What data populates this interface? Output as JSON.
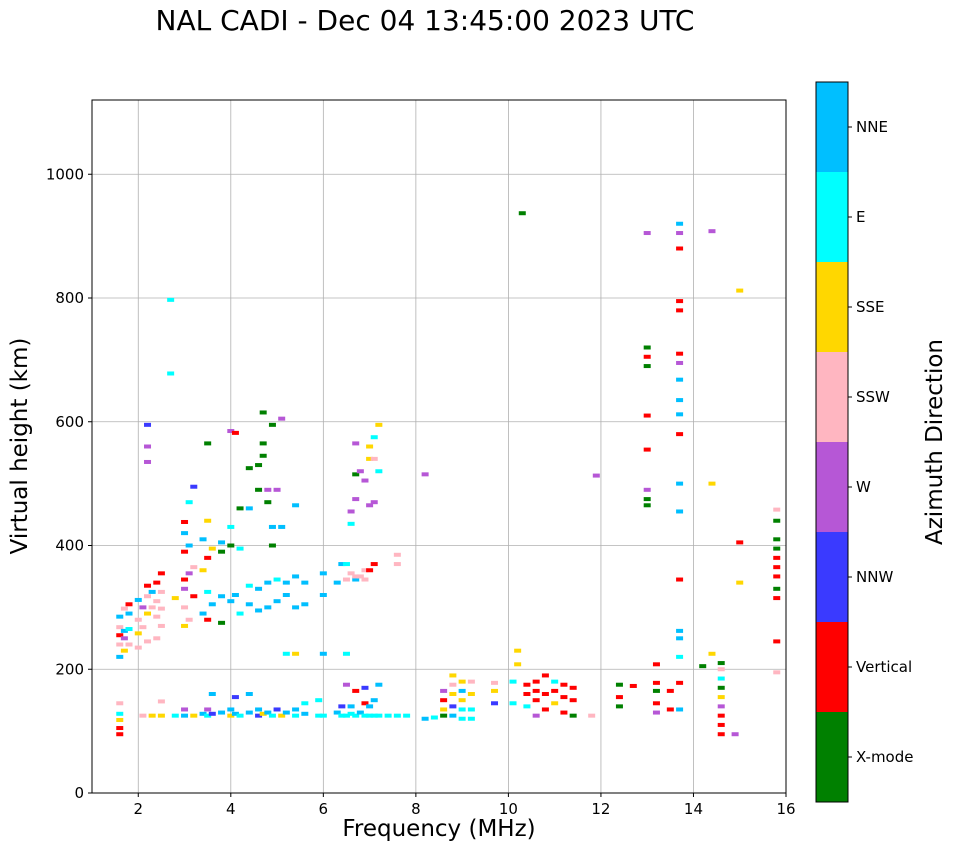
{
  "chart_data": {
    "type": "scatter",
    "title": "NAL CADI - Dec 04 13:45:00 2023 UTC",
    "xlabel": "Frequency (MHz)",
    "ylabel": "Virtual height (km)",
    "xlim": [
      1,
      16
    ],
    "ylim": [
      0,
      1120
    ],
    "xticks": [
      2,
      4,
      6,
      8,
      10,
      12,
      14,
      16
    ],
    "yticks": [
      0,
      200,
      400,
      600,
      800,
      1000
    ],
    "grid": true,
    "colorbar": {
      "label": "Azimuth Direction",
      "categories": [
        {
          "name": "X-mode",
          "color": "#008000"
        },
        {
          "name": "Vertical",
          "color": "#ff0000"
        },
        {
          "name": "NNW",
          "color": "#3a3aff"
        },
        {
          "name": "W",
          "color": "#b657d6"
        },
        {
          "name": "SSW",
          "color": "#ffb6c1"
        },
        {
          "name": "SSE",
          "color": "#ffd700"
        },
        {
          "name": "E",
          "color": "#00ffff"
        },
        {
          "name": "NNE",
          "color": "#00bfff"
        }
      ]
    },
    "points": [
      [
        1.6,
        95,
        "Vertical"
      ],
      [
        1.6,
        105,
        "Vertical"
      ],
      [
        1.6,
        118,
        "SSE"
      ],
      [
        1.6,
        128,
        "E"
      ],
      [
        1.6,
        145,
        "SSW"
      ],
      [
        1.6,
        220,
        "NNE"
      ],
      [
        1.6,
        240,
        "SSW"
      ],
      [
        1.6,
        255,
        "Vertical"
      ],
      [
        1.6,
        268,
        "SSW"
      ],
      [
        1.6,
        285,
        "NNE"
      ],
      [
        1.7,
        230,
        "SSE"
      ],
      [
        1.7,
        250,
        "W"
      ],
      [
        1.7,
        262,
        "NNE"
      ],
      [
        1.7,
        298,
        "SSW"
      ],
      [
        1.8,
        240,
        "SSW"
      ],
      [
        1.8,
        265,
        "E"
      ],
      [
        1.8,
        290,
        "NNE"
      ],
      [
        1.8,
        305,
        "Vertical"
      ],
      [
        2.0,
        235,
        "SSW"
      ],
      [
        2.0,
        258,
        "SSE"
      ],
      [
        2.0,
        280,
        "SSW"
      ],
      [
        2.0,
        312,
        "NNE"
      ],
      [
        2.1,
        125,
        "SSW"
      ],
      [
        2.1,
        268,
        "SSW"
      ],
      [
        2.1,
        300,
        "W"
      ],
      [
        2.2,
        245,
        "SSW"
      ],
      [
        2.2,
        290,
        "SSE"
      ],
      [
        2.2,
        318,
        "SSW"
      ],
      [
        2.2,
        335,
        "Vertical"
      ],
      [
        2.2,
        595,
        "NNW"
      ],
      [
        2.2,
        560,
        "W"
      ],
      [
        2.2,
        535,
        "W"
      ],
      [
        2.3,
        125,
        "SSE"
      ],
      [
        2.3,
        300,
        "SSW"
      ],
      [
        2.3,
        325,
        "NNE"
      ],
      [
        2.4,
        250,
        "SSW"
      ],
      [
        2.4,
        285,
        "SSW"
      ],
      [
        2.4,
        310,
        "SSW"
      ],
      [
        2.4,
        340,
        "Vertical"
      ],
      [
        2.5,
        125,
        "SSE"
      ],
      [
        2.5,
        148,
        "SSW"
      ],
      [
        2.5,
        270,
        "SSW"
      ],
      [
        2.5,
        298,
        "SSW"
      ],
      [
        2.5,
        325,
        "SSW"
      ],
      [
        2.5,
        355,
        "Vertical"
      ],
      [
        2.7,
        678,
        "E"
      ],
      [
        2.7,
        797,
        "E"
      ],
      [
        2.8,
        125,
        "E"
      ],
      [
        2.8,
        315,
        "SSE"
      ],
      [
        3.0,
        125,
        "NNE"
      ],
      [
        3.0,
        135,
        "W"
      ],
      [
        3.0,
        270,
        "SSE"
      ],
      [
        3.0,
        300,
        "SSW"
      ],
      [
        3.0,
        330,
        "W"
      ],
      [
        3.0,
        345,
        "Vertical"
      ],
      [
        3.0,
        390,
        "Vertical"
      ],
      [
        3.0,
        420,
        "NNE"
      ],
      [
        3.0,
        438,
        "Vertical"
      ],
      [
        3.1,
        280,
        "SSW"
      ],
      [
        3.1,
        355,
        "W"
      ],
      [
        3.1,
        400,
        "NNE"
      ],
      [
        3.1,
        470,
        "E"
      ],
      [
        3.2,
        125,
        "SSE"
      ],
      [
        3.2,
        318,
        "Vertical"
      ],
      [
        3.2,
        365,
        "SSW"
      ],
      [
        3.2,
        495,
        "NNW"
      ],
      [
        3.4,
        128,
        "NNE"
      ],
      [
        3.4,
        290,
        "NNE"
      ],
      [
        3.4,
        360,
        "SSE"
      ],
      [
        3.4,
        410,
        "NNE"
      ],
      [
        3.5,
        125,
        "E"
      ],
      [
        3.5,
        135,
        "W"
      ],
      [
        3.5,
        280,
        "Vertical"
      ],
      [
        3.5,
        325,
        "E"
      ],
      [
        3.5,
        380,
        "Vertical"
      ],
      [
        3.5,
        440,
        "SSE"
      ],
      [
        3.5,
        565,
        "X-mode"
      ],
      [
        3.6,
        128,
        "NNW"
      ],
      [
        3.6,
        160,
        "NNE"
      ],
      [
        3.6,
        305,
        "NNE"
      ],
      [
        3.6,
        395,
        "SSE"
      ],
      [
        3.8,
        130,
        "NNE"
      ],
      [
        3.8,
        275,
        "X-mode"
      ],
      [
        3.8,
        318,
        "NNE"
      ],
      [
        3.8,
        390,
        "X-mode"
      ],
      [
        3.8,
        405,
        "NNE"
      ],
      [
        4.0,
        125,
        "SSE"
      ],
      [
        4.0,
        135,
        "NNE"
      ],
      [
        4.0,
        310,
        "NNE"
      ],
      [
        4.0,
        400,
        "X-mode"
      ],
      [
        4.0,
        430,
        "E"
      ],
      [
        4.0,
        585,
        "W"
      ],
      [
        4.1,
        128,
        "NNE"
      ],
      [
        4.1,
        155,
        "NNW"
      ],
      [
        4.1,
        320,
        "NNE"
      ],
      [
        4.1,
        582,
        "Vertical"
      ],
      [
        4.2,
        125,
        "E"
      ],
      [
        4.2,
        290,
        "E"
      ],
      [
        4.2,
        395,
        "E"
      ],
      [
        4.2,
        460,
        "X-mode"
      ],
      [
        4.4,
        130,
        "NNE"
      ],
      [
        4.4,
        160,
        "NNE"
      ],
      [
        4.4,
        305,
        "NNE"
      ],
      [
        4.4,
        335,
        "E"
      ],
      [
        4.4,
        460,
        "NNE"
      ],
      [
        4.4,
        525,
        "X-mode"
      ],
      [
        4.6,
        125,
        "NNW"
      ],
      [
        4.6,
        135,
        "NNE"
      ],
      [
        4.6,
        295,
        "NNE"
      ],
      [
        4.6,
        330,
        "NNE"
      ],
      [
        4.6,
        490,
        "X-mode"
      ],
      [
        4.6,
        530,
        "X-mode"
      ],
      [
        4.7,
        128,
        "SSE"
      ],
      [
        4.7,
        615,
        "X-mode"
      ],
      [
        4.7,
        565,
        "X-mode"
      ],
      [
        4.7,
        545,
        "X-mode"
      ],
      [
        4.8,
        130,
        "NNE"
      ],
      [
        4.8,
        300,
        "NNE"
      ],
      [
        4.8,
        340,
        "NNE"
      ],
      [
        4.8,
        470,
        "X-mode"
      ],
      [
        4.8,
        490,
        "W"
      ],
      [
        4.9,
        125,
        "E"
      ],
      [
        4.9,
        400,
        "X-mode"
      ],
      [
        4.9,
        430,
        "NNE"
      ],
      [
        4.9,
        595,
        "X-mode"
      ],
      [
        5.0,
        135,
        "NNW"
      ],
      [
        5.0,
        310,
        "NNE"
      ],
      [
        5.0,
        345,
        "E"
      ],
      [
        5.0,
        490,
        "W"
      ],
      [
        5.1,
        125,
        "SSE"
      ],
      [
        5.1,
        430,
        "NNE"
      ],
      [
        5.1,
        605,
        "W"
      ],
      [
        5.2,
        130,
        "NNE"
      ],
      [
        5.2,
        320,
        "NNE"
      ],
      [
        5.2,
        340,
        "NNE"
      ],
      [
        5.2,
        225,
        "E"
      ],
      [
        5.4,
        125,
        "E"
      ],
      [
        5.4,
        135,
        "NNE"
      ],
      [
        5.4,
        300,
        "NNE"
      ],
      [
        5.4,
        350,
        "NNE"
      ],
      [
        5.4,
        465,
        "NNE"
      ],
      [
        5.4,
        225,
        "SSE"
      ],
      [
        5.6,
        128,
        "NNE"
      ],
      [
        5.6,
        145,
        "E"
      ],
      [
        5.6,
        305,
        "NNE"
      ],
      [
        5.6,
        340,
        "NNE"
      ],
      [
        5.9,
        125,
        "E"
      ],
      [
        5.9,
        150,
        "E"
      ],
      [
        6.0,
        125,
        "E"
      ],
      [
        6.0,
        320,
        "NNE"
      ],
      [
        6.0,
        355,
        "NNE"
      ],
      [
        6.0,
        225,
        "NNE"
      ],
      [
        6.3,
        130,
        "NNE"
      ],
      [
        6.3,
        340,
        "NNE"
      ],
      [
        6.4,
        125,
        "E"
      ],
      [
        6.4,
        140,
        "NNW"
      ],
      [
        6.4,
        370,
        "NNE"
      ],
      [
        6.5,
        125,
        "E"
      ],
      [
        6.5,
        175,
        "W"
      ],
      [
        6.5,
        225,
        "E"
      ],
      [
        6.5,
        345,
        "SSW"
      ],
      [
        6.5,
        370,
        "E"
      ],
      [
        6.6,
        128,
        "E"
      ],
      [
        6.6,
        140,
        "NNE"
      ],
      [
        6.6,
        355,
        "SSW"
      ],
      [
        6.6,
        435,
        "E"
      ],
      [
        6.6,
        455,
        "W"
      ],
      [
        6.7,
        125,
        "E"
      ],
      [
        6.7,
        165,
        "Vertical"
      ],
      [
        6.7,
        345,
        "NNE"
      ],
      [
        6.7,
        350,
        "SSW"
      ],
      [
        6.7,
        475,
        "W"
      ],
      [
        6.7,
        515,
        "X-mode"
      ],
      [
        6.7,
        565,
        "W"
      ],
      [
        6.8,
        130,
        "NNE"
      ],
      [
        6.8,
        350,
        "SSW"
      ],
      [
        6.8,
        520,
        "W"
      ],
      [
        6.9,
        125,
        "E"
      ],
      [
        6.9,
        145,
        "Vertical"
      ],
      [
        6.9,
        170,
        "NNW"
      ],
      [
        6.9,
        345,
        "SSW"
      ],
      [
        6.9,
        360,
        "SSW"
      ],
      [
        6.9,
        505,
        "W"
      ],
      [
        7.0,
        125,
        "E"
      ],
      [
        7.0,
        140,
        "NNE"
      ],
      [
        7.0,
        360,
        "Vertical"
      ],
      [
        7.0,
        465,
        "W"
      ],
      [
        7.0,
        540,
        "SSE"
      ],
      [
        7.0,
        560,
        "SSE"
      ],
      [
        7.1,
        125,
        "E"
      ],
      [
        7.1,
        150,
        "NNE"
      ],
      [
        7.1,
        370,
        "Vertical"
      ],
      [
        7.1,
        575,
        "E"
      ],
      [
        7.1,
        470,
        "W"
      ],
      [
        7.1,
        540,
        "SSW"
      ],
      [
        7.2,
        125,
        "E"
      ],
      [
        7.2,
        175,
        "NNE"
      ],
      [
        7.2,
        595,
        "SSE"
      ],
      [
        7.2,
        520,
        "E"
      ],
      [
        7.4,
        125,
        "E"
      ],
      [
        7.6,
        125,
        "E"
      ],
      [
        7.6,
        370,
        "SSW"
      ],
      [
        7.6,
        385,
        "SSW"
      ],
      [
        7.8,
        125,
        "E"
      ],
      [
        8.2,
        120,
        "NNE"
      ],
      [
        8.2,
        515,
        "W"
      ],
      [
        8.4,
        122,
        "E"
      ],
      [
        8.6,
        125,
        "X-mode"
      ],
      [
        8.6,
        135,
        "SSE"
      ],
      [
        8.6,
        150,
        "Vertical"
      ],
      [
        8.6,
        165,
        "W"
      ],
      [
        8.8,
        125,
        "NNE"
      ],
      [
        8.8,
        140,
        "NNW"
      ],
      [
        8.8,
        160,
        "SSE"
      ],
      [
        8.8,
        175,
        "SSW"
      ],
      [
        8.8,
        190,
        "SSE"
      ],
      [
        9.0,
        120,
        "E"
      ],
      [
        9.0,
        135,
        "E"
      ],
      [
        9.0,
        150,
        "SSE"
      ],
      [
        9.0,
        165,
        "NNE"
      ],
      [
        9.0,
        180,
        "SSE"
      ],
      [
        9.2,
        120,
        "E"
      ],
      [
        9.2,
        135,
        "E"
      ],
      [
        9.2,
        160,
        "SSE"
      ],
      [
        9.2,
        180,
        "SSW"
      ],
      [
        9.7,
        145,
        "NNW"
      ],
      [
        9.7,
        165,
        "SSE"
      ],
      [
        9.7,
        178,
        "SSW"
      ],
      [
        10.1,
        180,
        "E"
      ],
      [
        10.1,
        145,
        "E"
      ],
      [
        10.2,
        230,
        "SSE"
      ],
      [
        10.2,
        208,
        "SSE"
      ],
      [
        10.3,
        937,
        "X-mode"
      ],
      [
        10.4,
        160,
        "Vertical"
      ],
      [
        10.4,
        175,
        "Vertical"
      ],
      [
        10.4,
        140,
        "E"
      ],
      [
        10.6,
        125,
        "W"
      ],
      [
        10.6,
        150,
        "Vertical"
      ],
      [
        10.6,
        165,
        "Vertical"
      ],
      [
        10.6,
        180,
        "Vertical"
      ],
      [
        10.8,
        135,
        "Vertical"
      ],
      [
        10.8,
        160,
        "Vertical"
      ],
      [
        10.8,
        190,
        "Vertical"
      ],
      [
        11.0,
        145,
        "SSE"
      ],
      [
        11.0,
        165,
        "Vertical"
      ],
      [
        11.0,
        180,
        "E"
      ],
      [
        11.2,
        130,
        "Vertical"
      ],
      [
        11.2,
        155,
        "Vertical"
      ],
      [
        11.2,
        175,
        "Vertical"
      ],
      [
        11.4,
        125,
        "X-mode"
      ],
      [
        11.4,
        150,
        "Vertical"
      ],
      [
        11.4,
        170,
        "Vertical"
      ],
      [
        11.8,
        125,
        "SSW"
      ],
      [
        11.9,
        513,
        "W"
      ],
      [
        12.4,
        140,
        "X-mode"
      ],
      [
        12.4,
        155,
        "Vertical"
      ],
      [
        12.4,
        175,
        "X-mode"
      ],
      [
        12.7,
        173,
        "Vertical"
      ],
      [
        13.0,
        475,
        "X-mode"
      ],
      [
        13.0,
        490,
        "W"
      ],
      [
        13.0,
        465,
        "X-mode"
      ],
      [
        13.0,
        555,
        "Vertical"
      ],
      [
        13.0,
        610,
        "Vertical"
      ],
      [
        13.0,
        690,
        "X-mode"
      ],
      [
        13.0,
        705,
        "Vertical"
      ],
      [
        13.0,
        720,
        "X-mode"
      ],
      [
        13.0,
        905,
        "W"
      ],
      [
        13.2,
        130,
        "W"
      ],
      [
        13.2,
        145,
        "Vertical"
      ],
      [
        13.2,
        165,
        "X-mode"
      ],
      [
        13.2,
        178,
        "Vertical"
      ],
      [
        13.2,
        208,
        "Vertical"
      ],
      [
        13.5,
        135,
        "Vertical"
      ],
      [
        13.5,
        165,
        "Vertical"
      ],
      [
        13.7,
        135,
        "NNE"
      ],
      [
        13.7,
        178,
        "Vertical"
      ],
      [
        13.7,
        220,
        "E"
      ],
      [
        13.7,
        250,
        "NNE"
      ],
      [
        13.7,
        262,
        "NNE"
      ],
      [
        13.7,
        345,
        "Vertical"
      ],
      [
        13.7,
        455,
        "NNE"
      ],
      [
        13.7,
        500,
        "NNE"
      ],
      [
        13.7,
        580,
        "Vertical"
      ],
      [
        13.7,
        612,
        "NNE"
      ],
      [
        13.7,
        635,
        "NNE"
      ],
      [
        13.7,
        668,
        "NNE"
      ],
      [
        13.7,
        695,
        "W"
      ],
      [
        13.7,
        710,
        "Vertical"
      ],
      [
        13.7,
        780,
        "Vertical"
      ],
      [
        13.7,
        795,
        "Vertical"
      ],
      [
        13.7,
        880,
        "Vertical"
      ],
      [
        13.7,
        905,
        "W"
      ],
      [
        13.7,
        920,
        "NNE"
      ],
      [
        14.2,
        205,
        "X-mode"
      ],
      [
        14.4,
        225,
        "SSE"
      ],
      [
        14.4,
        500,
        "SSE"
      ],
      [
        14.4,
        908,
        "W"
      ],
      [
        14.6,
        95,
        "Vertical"
      ],
      [
        14.6,
        110,
        "Vertical"
      ],
      [
        14.6,
        125,
        "Vertical"
      ],
      [
        14.6,
        140,
        "W"
      ],
      [
        14.6,
        155,
        "SSE"
      ],
      [
        14.6,
        170,
        "X-mode"
      ],
      [
        14.6,
        185,
        "E"
      ],
      [
        14.6,
        200,
        "SSW"
      ],
      [
        14.6,
        210,
        "X-mode"
      ],
      [
        14.9,
        95,
        "W"
      ],
      [
        15.0,
        340,
        "SSE"
      ],
      [
        15.0,
        405,
        "Vertical"
      ],
      [
        15.0,
        812,
        "SSE"
      ],
      [
        15.8,
        195,
        "SSW"
      ],
      [
        15.8,
        245,
        "Vertical"
      ],
      [
        15.8,
        315,
        "Vertical"
      ],
      [
        15.8,
        330,
        "X-mode"
      ],
      [
        15.8,
        350,
        "Vertical"
      ],
      [
        15.8,
        365,
        "Vertical"
      ],
      [
        15.8,
        380,
        "Vertical"
      ],
      [
        15.8,
        395,
        "X-mode"
      ],
      [
        15.8,
        410,
        "X-mode"
      ],
      [
        15.8,
        440,
        "X-mode"
      ],
      [
        15.8,
        458,
        "SSW"
      ]
    ]
  }
}
